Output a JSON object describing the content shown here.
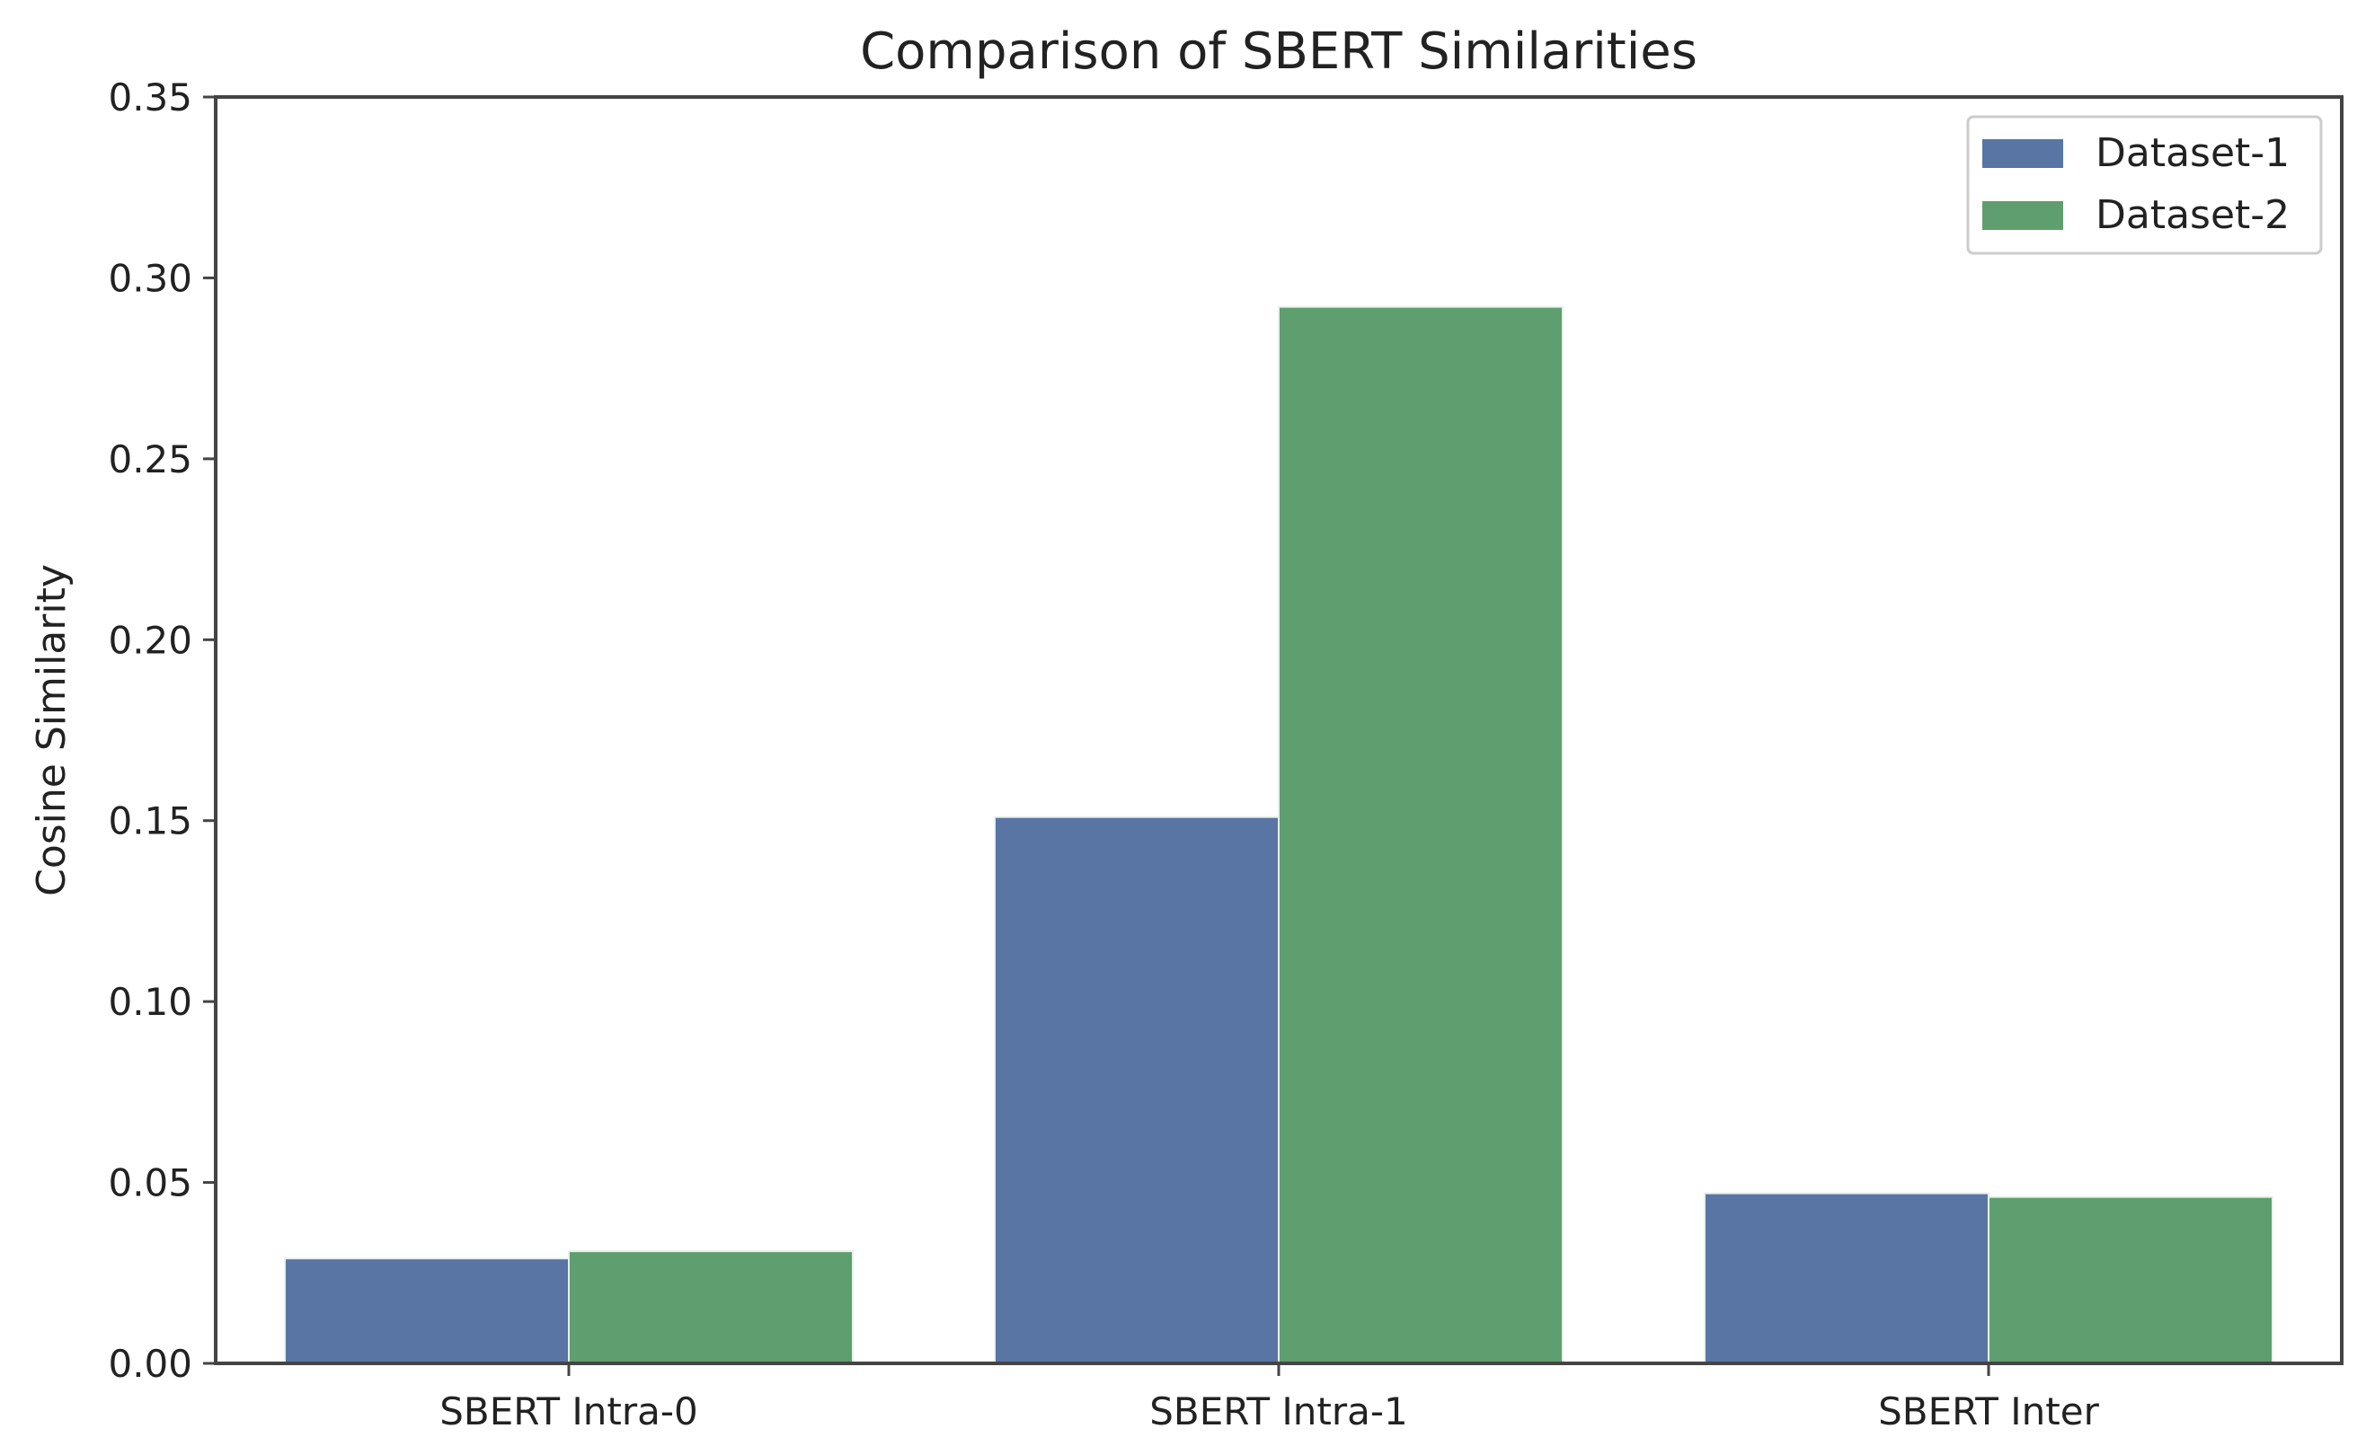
{
  "chart_data": {
    "type": "bar",
    "title": "Comparison of SBERT Similarities",
    "xlabel": "",
    "ylabel": "Cosine Similarity",
    "categories": [
      "SBERT Intra-0",
      "SBERT Intra-1",
      "SBERT Inter"
    ],
    "series": [
      {
        "name": "Dataset-1",
        "color": "#5875a4",
        "values": [
          0.029,
          0.151,
          0.047
        ]
      },
      {
        "name": "Dataset-2",
        "color": "#5f9e6e",
        "values": [
          0.031,
          0.292,
          0.046
        ]
      }
    ],
    "ylim": [
      0,
      0.35
    ],
    "yticks": [
      "0.00",
      "0.05",
      "0.10",
      "0.15",
      "0.20",
      "0.25",
      "0.30",
      "0.35"
    ],
    "grid": false,
    "legend_position": "top-right"
  }
}
